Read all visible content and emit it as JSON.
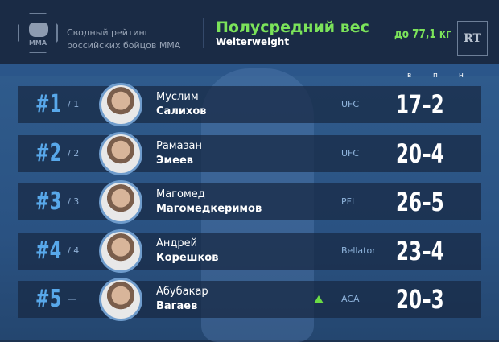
{
  "header": {
    "logo_text": "MMA",
    "subtitle_line1": "Сводный рейтинг",
    "subtitle_line2": "российских бойцов MMA",
    "title": "Полусредний вес",
    "title_en": "Welterweight",
    "limit": "до 77,1 кг",
    "brand": "RT"
  },
  "columns": [
    "в",
    "п",
    "н"
  ],
  "fighters": [
    {
      "rank": "#1",
      "prev": "/ 1",
      "first": "Муслим",
      "last": "Салихов",
      "org": "UFC",
      "record": "17–2",
      "trend": ""
    },
    {
      "rank": "#2",
      "prev": "/ 2",
      "first": "Рамазан",
      "last": "Эмеев",
      "org": "UFC",
      "record": "20–4",
      "trend": ""
    },
    {
      "rank": "#3",
      "prev": "/ 3",
      "first": "Магомед",
      "last": "Магомедкеримов",
      "org": "PFL",
      "record": "26–5",
      "trend": ""
    },
    {
      "rank": "#4",
      "prev": "/ 4",
      "first": "Андрей",
      "last": "Корешков",
      "org": "Bellator",
      "record": "23–4",
      "trend": ""
    },
    {
      "rank": "#5",
      "prev": "—",
      "first": "Абубакар",
      "last": "Вагаев",
      "org": "ACA",
      "record": "20–3",
      "trend": "up"
    }
  ],
  "colors": {
    "accent": "#7be35a",
    "rank": "#58a8ea",
    "background": "#1a2b45"
  }
}
